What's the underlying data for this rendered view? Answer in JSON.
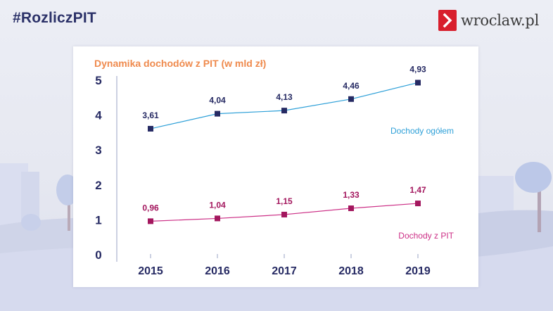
{
  "header": {
    "hashtag": "#RozliczPIT",
    "brand_name": "wroclaw.pl"
  },
  "colors": {
    "series_total": "#2ea0d8",
    "series_pit": "#cc2f86",
    "marker_total": "#262a63",
    "marker_pit": "#a3175e",
    "title": "#ef8a4d",
    "brand_red": "#d81e2c"
  },
  "chart_data": {
    "type": "line",
    "title": "Dynamika dochodów z PIT (w mld zł)",
    "categories": [
      "2015",
      "2016",
      "2017",
      "2018",
      "2019"
    ],
    "ylim": [
      0,
      5
    ],
    "yticks": [
      "0",
      "1",
      "2",
      "3",
      "4",
      "5"
    ],
    "grid": false,
    "series": [
      {
        "name": "Dochody ogółem",
        "values": [
          3.61,
          4.04,
          4.13,
          4.46,
          4.93
        ],
        "labels": [
          "3,61",
          "4,04",
          "4,13",
          "4,46",
          "4,93"
        ]
      },
      {
        "name": "Dochody z PIT",
        "values": [
          0.96,
          1.04,
          1.15,
          1.33,
          1.47
        ],
        "labels": [
          "0,96",
          "1,04",
          "1,15",
          "1,33",
          "1,47"
        ]
      }
    ]
  }
}
